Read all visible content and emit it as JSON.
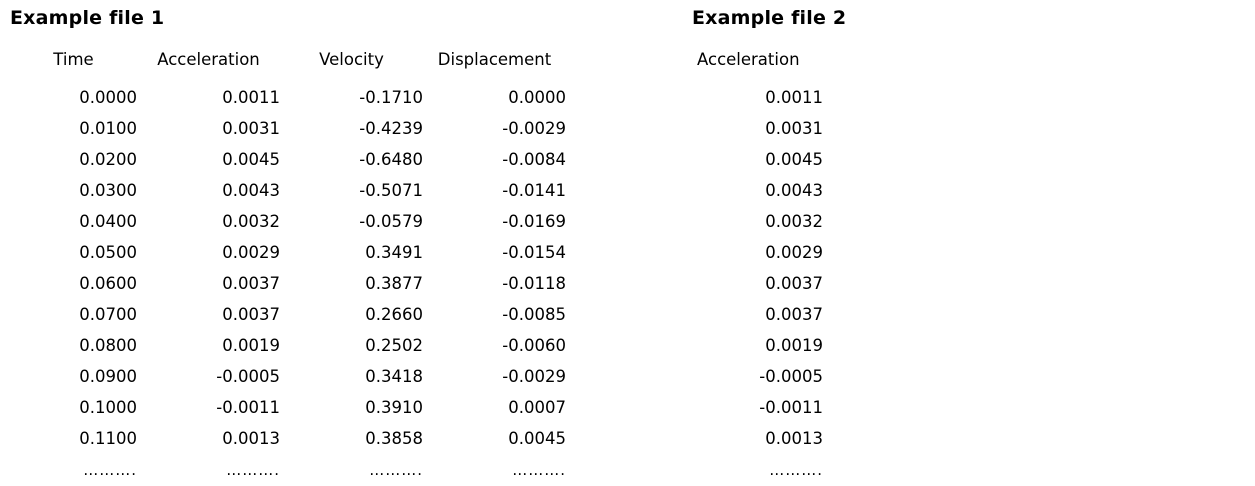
{
  "colors": {
    "background": "#ffffff",
    "text": "#000000"
  },
  "file1": {
    "title": "Example file 1",
    "columns": [
      "Time",
      "Acceleration",
      "Velocity",
      "Displacement"
    ],
    "rows": [
      [
        "0.0000",
        "0.0011",
        "-0.1710",
        "0.0000"
      ],
      [
        "0.0100",
        "0.0031",
        "-0.4239",
        "-0.0029"
      ],
      [
        "0.0200",
        "0.0045",
        "-0.6480",
        "-0.0084"
      ],
      [
        "0.0300",
        "0.0043",
        "-0.5071",
        "-0.0141"
      ],
      [
        "0.0400",
        "0.0032",
        "-0.0579",
        "-0.0169"
      ],
      [
        "0.0500",
        "0.0029",
        "0.3491",
        "-0.0154"
      ],
      [
        "0.0600",
        "0.0037",
        "0.3877",
        "-0.0118"
      ],
      [
        "0.0700",
        "0.0037",
        "0.2660",
        "-0.0085"
      ],
      [
        "0.0800",
        "0.0019",
        "0.2502",
        "-0.0060"
      ],
      [
        "0.0900",
        "-0.0005",
        "0.3418",
        "-0.0029"
      ],
      [
        "0.1000",
        "-0.0011",
        "0.3910",
        "0.0007"
      ],
      [
        "0.1100",
        "0.0013",
        "0.3858",
        "0.0045"
      ]
    ],
    "ellipsis_row": [
      "……….",
      "……….",
      "……….",
      "………."
    ]
  },
  "file2": {
    "title": "Example file 2",
    "columns": [
      "Acceleration"
    ],
    "rows": [
      [
        "0.0011"
      ],
      [
        "0.0031"
      ],
      [
        "0.0045"
      ],
      [
        "0.0043"
      ],
      [
        "0.0032"
      ],
      [
        "0.0029"
      ],
      [
        "0.0037"
      ],
      [
        "0.0037"
      ],
      [
        "0.0019"
      ],
      [
        "-0.0005"
      ],
      [
        "-0.0011"
      ],
      [
        "0.0013"
      ]
    ],
    "ellipsis_row": [
      "………."
    ]
  }
}
